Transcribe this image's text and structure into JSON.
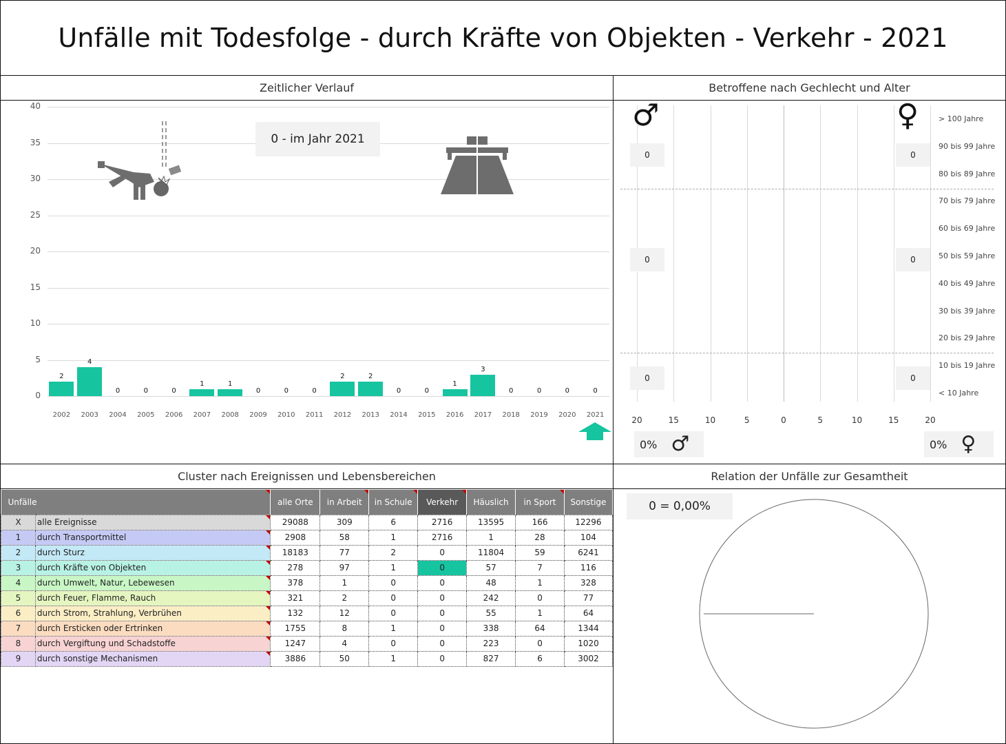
{
  "title": "Unfälle mit Todesfolge - durch Kräfte von Objekten - Verkehr - 2021",
  "panels": {
    "timeline": "Zeitlicher Verlauf",
    "pyramid": "Betroffene nach Gechlecht und Alter",
    "cluster": "Cluster nach Ereignissen und Lebensbereichen",
    "relation": "Relation der Unfälle zur Gesamtheit"
  },
  "timeline_info": "0 - im Jahr 2021",
  "chart_data": [
    {
      "type": "bar",
      "categories": [
        "2002",
        "2003",
        "2004",
        "2005",
        "2006",
        "2007",
        "2008",
        "2009",
        "2010",
        "2011",
        "2012",
        "2013",
        "2014",
        "2015",
        "2016",
        "2017",
        "2018",
        "2019",
        "2020",
        "2021"
      ],
      "values": [
        2,
        4,
        0,
        0,
        0,
        1,
        1,
        0,
        0,
        0,
        2,
        2,
        0,
        0,
        1,
        3,
        0,
        0,
        0,
        0
      ],
      "ylim": [
        0,
        40
      ],
      "yticks": [
        "0",
        "5",
        "10",
        "15",
        "20",
        "25",
        "30",
        "35",
        "40"
      ],
      "grid": true,
      "color": "#16c4a0"
    },
    {
      "type": "bar",
      "orientation": "horizontal",
      "categories": [
        "> 100 Jahre",
        "90 bis 99 Jahre",
        "80 bis 89 Jahre",
        "70 bis 79 Jahre",
        "60 bis 69 Jahre",
        "50 bis 59 Jahre",
        "40 bis 49 Jahre",
        "30 bis 39 Jahre",
        "20 bis 29 Jahre",
        "10 bis 19 Jahre",
        "< 10 Jahre"
      ],
      "series": [
        {
          "values": [
            0,
            0,
            0,
            0,
            0,
            0,
            0,
            0,
            0,
            0,
            0
          ]
        },
        {
          "values": [
            0,
            0,
            0,
            0,
            0,
            0,
            0,
            0,
            0,
            0,
            0
          ]
        }
      ],
      "xticks": [
        "20",
        "15",
        "10",
        "5",
        "0",
        "5",
        "10",
        "15",
        "20"
      ],
      "xlim": [
        -20,
        20
      ]
    },
    {
      "type": "pie",
      "values": [
        0,
        100
      ],
      "label": "0 =  0,00%"
    }
  ],
  "pyramid": {
    "male_boxes": [
      "0",
      "0",
      "0"
    ],
    "female_boxes": [
      "0",
      "0",
      "0"
    ],
    "male_percent": "0%",
    "female_percent": "0%",
    "male_symbol": "♂",
    "female_symbol": "♀"
  },
  "cluster_table": {
    "headers": [
      "Unfälle",
      "alle Orte",
      "in Arbeit",
      "in Schule",
      "Verkehr",
      "Häuslich",
      "in Sport",
      "Sonstige"
    ],
    "selected_column": "Verkehr",
    "rows": [
      {
        "code": "X",
        "label": "alle Ereignisse",
        "color": "#d9d9d9",
        "values": [
          "29088",
          "309",
          "6",
          "2716",
          "13595",
          "166",
          "12296"
        ]
      },
      {
        "code": "1",
        "label": "durch Transportmittel",
        "color": "#c5caf5",
        "values": [
          "2908",
          "58",
          "1",
          "2716",
          "1",
          "28",
          "104"
        ]
      },
      {
        "code": "2",
        "label": "durch Sturz",
        "color": "#c3e9f7",
        "values": [
          "18183",
          "77",
          "2",
          "0",
          "11804",
          "59",
          "6241"
        ]
      },
      {
        "code": "3",
        "label": "durch Kräfte von Objekten",
        "color": "#b8f2e4",
        "values": [
          "278",
          "97",
          "1",
          "0",
          "57",
          "7",
          "116"
        ]
      },
      {
        "code": "4",
        "label": "durch Umwelt, Natur, Lebewesen",
        "color": "#c8f7c5",
        "values": [
          "378",
          "1",
          "0",
          "0",
          "48",
          "1",
          "328"
        ]
      },
      {
        "code": "5",
        "label": "durch Feuer, Flamme, Rauch",
        "color": "#e5f5c0",
        "values": [
          "321",
          "2",
          "0",
          "0",
          "242",
          "0",
          "77"
        ]
      },
      {
        "code": "6",
        "label": "durch Strom, Strahlung, Verbrühen",
        "color": "#fbeec5",
        "values": [
          "132",
          "12",
          "0",
          "0",
          "55",
          "1",
          "64"
        ]
      },
      {
        "code": "7",
        "label": "durch Ersticken oder Ertrinken",
        "color": "#fbdcc0",
        "values": [
          "1755",
          "8",
          "1",
          "0",
          "338",
          "64",
          "1344"
        ]
      },
      {
        "code": "8",
        "label": "durch Vergiftung und Schadstoffe",
        "color": "#f8d3d3",
        "values": [
          "1247",
          "4",
          "0",
          "0",
          "223",
          "0",
          "1020"
        ]
      },
      {
        "code": "9",
        "label": "durch sonstige Mechanismen",
        "color": "#e3d6f5",
        "values": [
          "3886",
          "50",
          "1",
          "0",
          "827",
          "6",
          "3002"
        ]
      }
    ],
    "highlight_cell": {
      "row": 3,
      "column": "Verkehr",
      "color": "#16c4a0"
    }
  },
  "icons": [
    "falling-person-icon",
    "highway-icon",
    "up-arrow-icon",
    "male-symbol-icon",
    "female-symbol-icon"
  ]
}
